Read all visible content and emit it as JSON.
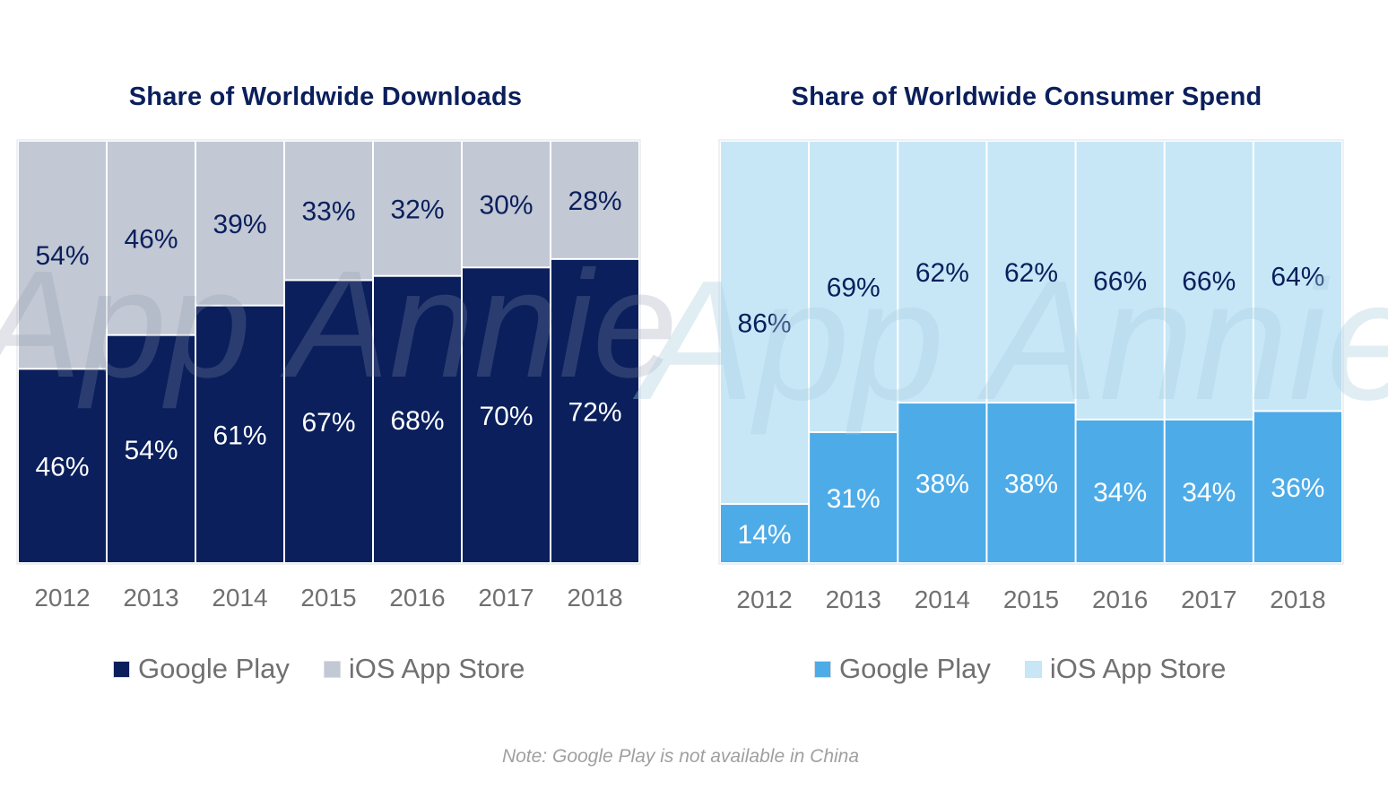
{
  "watermark": "App Annie",
  "note": "Note: Google Play is not available in China",
  "chart_data": [
    {
      "type": "bar",
      "stacked": true,
      "title": "Share of Worldwide Downloads",
      "categories": [
        "2012",
        "2013",
        "2014",
        "2015",
        "2016",
        "2017",
        "2018"
      ],
      "ylim": [
        0,
        100
      ],
      "grid": false,
      "legend_position": "bottom",
      "series": [
        {
          "name": "Google Play",
          "color": "#0a1f5c",
          "label_color": "#ffffff",
          "values": [
            46,
            54,
            61,
            67,
            68,
            70,
            72
          ]
        },
        {
          "name": "iOS App Store",
          "color": "#c2c8d4",
          "label_color": "#0a1f5c",
          "values": [
            54,
            46,
            39,
            33,
            32,
            30,
            28
          ]
        }
      ]
    },
    {
      "type": "bar",
      "stacked": true,
      "title": "Share of Worldwide Consumer Spend",
      "categories": [
        "2012",
        "2013",
        "2014",
        "2015",
        "2016",
        "2017",
        "2018"
      ],
      "ylim": [
        0,
        100
      ],
      "grid": false,
      "legend_position": "bottom",
      "series": [
        {
          "name": "Google Play",
          "color": "#4dabe8",
          "label_color": "#ffffff",
          "values": [
            14,
            31,
            38,
            38,
            34,
            34,
            36
          ]
        },
        {
          "name": "iOS App Store",
          "color": "#c7e7f7",
          "label_color": "#0a1f5c",
          "values": [
            86,
            69,
            62,
            62,
            66,
            66,
            64
          ]
        }
      ]
    }
  ]
}
